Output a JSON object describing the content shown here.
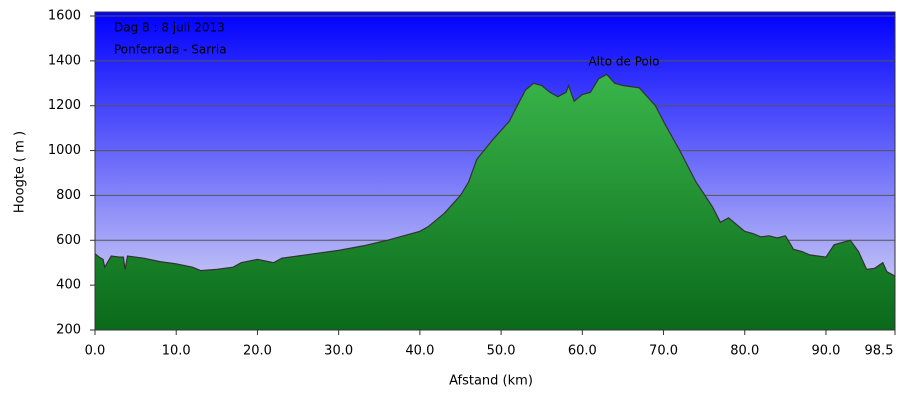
{
  "chart_data": {
    "type": "area",
    "annotations": [
      "Dag 8 :  8 juli 2013",
      "Ponferrada - Sarria",
      "Alto de Poio"
    ],
    "x_label": "Afstand  (km)",
    "y_label": "Hoogte ( m )",
    "x": [
      0,
      0.5,
      1,
      1.2,
      2,
      3,
      3.5,
      3.7,
      4,
      6,
      8,
      10,
      12,
      13,
      15,
      17,
      18,
      20,
      22,
      23,
      25,
      27,
      30,
      33,
      36,
      38,
      40,
      41,
      43,
      45,
      46,
      47,
      49,
      51,
      52,
      53,
      54,
      55,
      56,
      57,
      58,
      58.3,
      59,
      60,
      61,
      62,
      63,
      64,
      65,
      67,
      68,
      69,
      70,
      72,
      74,
      76,
      77,
      78,
      79,
      80,
      81,
      82,
      83,
      84,
      85,
      86,
      87,
      88,
      89,
      90,
      91,
      92,
      93,
      94,
      95,
      96,
      97,
      97.5,
      98.5
    ],
    "values": [
      540,
      525,
      515,
      480,
      530,
      525,
      525,
      470,
      530,
      520,
      505,
      495,
      480,
      465,
      470,
      480,
      500,
      515,
      500,
      520,
      530,
      540,
      555,
      575,
      600,
      620,
      640,
      660,
      720,
      800,
      860,
      960,
      1050,
      1130,
      1200,
      1270,
      1300,
      1290,
      1260,
      1240,
      1260,
      1290,
      1220,
      1250,
      1260,
      1320,
      1340,
      1300,
      1290,
      1280,
      1240,
      1200,
      1130,
      1000,
      860,
      750,
      680,
      700,
      670,
      640,
      630,
      615,
      620,
      610,
      620,
      560,
      550,
      535,
      530,
      525,
      580,
      590,
      600,
      550,
      470,
      475,
      500,
      460,
      440
    ],
    "color": "#22a33a",
    "xlim": [
      0,
      98.5
    ],
    "ylim": [
      200,
      1600
    ],
    "xticks": [
      {
        "value": 0,
        "label": "0.0"
      },
      {
        "value": 10,
        "label": "10.0"
      },
      {
        "value": 20,
        "label": "20.0"
      },
      {
        "value": 30,
        "label": "30.0"
      },
      {
        "value": 40,
        "label": "40.0"
      },
      {
        "value": 50,
        "label": "50.0"
      },
      {
        "value": 60,
        "label": "60.0"
      },
      {
        "value": 70,
        "label": "70.0"
      },
      {
        "value": 80,
        "label": "80.0"
      },
      {
        "value": 90,
        "label": "90.0"
      },
      98.5
    ],
    "yticks": [
      200,
      400,
      600,
      800,
      1000,
      1200,
      1400,
      1600
    ],
    "grid": true
  }
}
